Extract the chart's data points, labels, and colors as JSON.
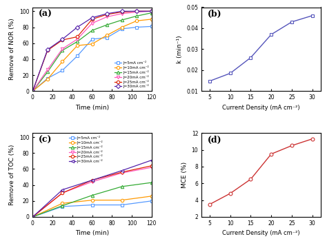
{
  "panel_a": {
    "time": [
      0,
      15,
      30,
      45,
      60,
      75,
      90,
      105,
      120
    ],
    "series": {
      "J=5mA cm⁻²": [
        0,
        16,
        26,
        44,
        65,
        67,
        78,
        80,
        81
      ],
      "J=10mA cm⁻²": [
        0,
        15,
        37,
        57,
        59,
        70,
        80,
        88,
        90
      ],
      "J=15mA cm⁻²": [
        0,
        24,
        51,
        62,
        76,
        83,
        89,
        94,
        98
      ],
      "J=20mA cm⁻²": [
        0,
        27,
        53,
        65,
        85,
        93,
        97,
        99,
        100
      ],
      "J=25mA cm⁻²": [
        0,
        51,
        64,
        68,
        90,
        96,
        99,
        100,
        100
      ],
      "J=30mA cm⁻²": [
        0,
        52,
        65,
        80,
        92,
        97,
        100,
        100,
        100
      ]
    },
    "colors": [
      "#5599ff",
      "#ff9900",
      "#33aa33",
      "#ff55bb",
      "#dd2200",
      "#5522aa"
    ],
    "markers": [
      "s",
      "o",
      "^",
      "v",
      "o",
      "D"
    ],
    "ylabel": "Remove of NOR (%)",
    "xlabel": "Time (min)",
    "title": "(a)",
    "ylim": [
      0,
      105
    ],
    "xlim": [
      0,
      120
    ],
    "xticks": [
      0,
      20,
      40,
      60,
      80,
      100,
      120
    ],
    "yticks": [
      0,
      20,
      40,
      60,
      80,
      100
    ]
  },
  "panel_b": {
    "x": [
      5,
      10,
      15,
      20,
      25,
      30
    ],
    "y": [
      0.0148,
      0.0185,
      0.026,
      0.037,
      0.043,
      0.046
    ],
    "color": "#5555bb",
    "marker": "s",
    "ylabel": "k (min⁻¹)",
    "xlabel": "Current Density (mA cm⁻²)",
    "title": "(b)",
    "ylim": [
      0.01,
      0.05
    ],
    "xlim": [
      3,
      32
    ],
    "xticks": [
      5,
      10,
      15,
      20,
      25,
      30
    ],
    "yticks": [
      0.01,
      0.02,
      0.03,
      0.04,
      0.05
    ]
  },
  "panel_c": {
    "time": [
      0,
      30,
      60,
      90,
      120
    ],
    "series": {
      "J=5mA cm⁻²": [
        0,
        13,
        15,
        15,
        20
      ],
      "J=10mA cm⁻²": [
        0,
        17,
        21,
        21,
        26
      ],
      "J=15mA cm⁻²": [
        0,
        14,
        27,
        38,
        43
      ],
      "J=20mA cm⁻²": [
        0,
        30,
        44,
        55,
        62
      ],
      "J=25mA cm⁻²": [
        0,
        30,
        46,
        56,
        64
      ],
      "J=30mA cm⁻²": [
        0,
        34,
        46,
        58,
        71
      ]
    },
    "colors": [
      "#5599ff",
      "#ff9900",
      "#33aa33",
      "#ff55bb",
      "#dd2200",
      "#5522aa"
    ],
    "markers": [
      "s",
      "o",
      "^",
      "v",
      "o",
      "<"
    ],
    "ylabel": "Remove of TOC (%)",
    "xlabel": "Time (min)",
    "title": "(c)",
    "ylim": [
      0,
      105
    ],
    "xlim": [
      0,
      120
    ],
    "xticks": [
      0,
      20,
      40,
      60,
      80,
      100,
      120
    ],
    "yticks": [
      0,
      20,
      40,
      60,
      80,
      100
    ]
  },
  "panel_d": {
    "x": [
      5,
      10,
      15,
      20,
      25,
      30
    ],
    "y": [
      3.5,
      4.8,
      6.5,
      9.5,
      10.5,
      11.3
    ],
    "color": "#cc3333",
    "marker": "o",
    "ylabel": "MCE (%)",
    "xlabel": "Current Density (mA cm⁻²)",
    "title": "(d)",
    "ylim": [
      2,
      12
    ],
    "xlim": [
      3,
      32
    ],
    "xticks": [
      5,
      10,
      15,
      20,
      25,
      30
    ],
    "yticks": [
      2,
      4,
      6,
      8,
      10,
      12
    ]
  }
}
